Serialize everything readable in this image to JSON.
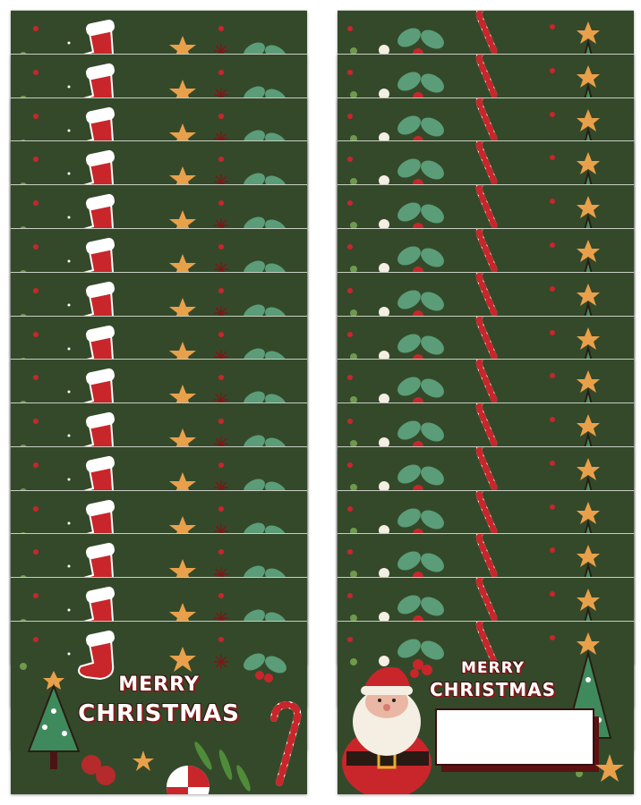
{
  "product": {
    "card_count_per_stack": 15,
    "left_card": {
      "greeting_line1": "MERRY",
      "greeting_line2": "CHRISTMAS"
    },
    "right_card": {
      "greeting_line1": "MERRY",
      "greeting_line2": "CHRISTMAS"
    }
  },
  "colors": {
    "card_green": "#34492a",
    "red": "#c8262b",
    "cream": "#f4efe2",
    "tree_green": "#3f8a5c",
    "star_orange": "#e9a04a"
  }
}
